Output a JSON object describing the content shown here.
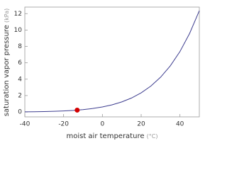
{
  "chart_data": {
    "type": "line",
    "x_label": "moist air temperature",
    "x_unit": "(°C)",
    "y_label": "saturation vapor pressure",
    "y_unit": "(kPa)",
    "x": [
      -40,
      -35,
      -30,
      -25,
      -20,
      -15,
      -10,
      -5,
      0,
      5,
      10,
      15,
      20,
      25,
      30,
      35,
      40,
      45,
      50
    ],
    "series": [
      {
        "color": "#3d3d8f",
        "values": [
          0.019,
          0.031,
          0.051,
          0.081,
          0.126,
          0.192,
          0.287,
          0.422,
          0.611,
          0.872,
          1.226,
          1.7,
          2.334,
          3.16,
          4.237,
          5.62,
          7.375,
          9.59,
          12.36
        ]
      }
    ],
    "highlight": {
      "x": -13,
      "y": 0.226,
      "color": "#d40000"
    },
    "xlim": [
      -40,
      50
    ],
    "xticks": [
      -40,
      -20,
      0,
      20,
      40
    ],
    "ylim": [
      -0.6,
      12.8
    ],
    "yticks": [
      0,
      2,
      4,
      6,
      8,
      10,
      12
    ]
  }
}
